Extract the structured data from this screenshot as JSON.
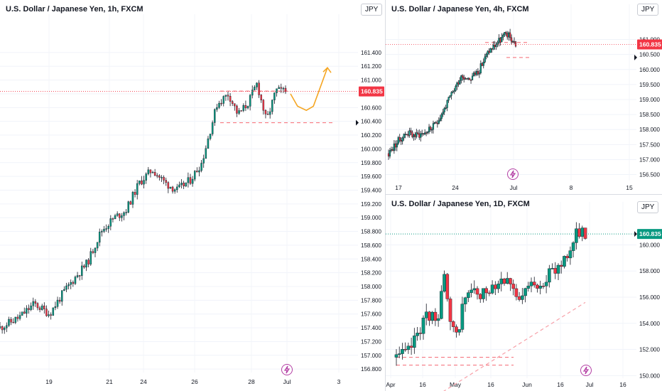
{
  "colors": {
    "up": "#089981",
    "down": "#f23645",
    "last_price": "#f23645",
    "daily_last": "#089981",
    "projection": "#f5a623",
    "bolt": "#b43fa4"
  },
  "chart_data": [
    {
      "type": "candlestick",
      "title": "U.S. Dollar / Japanese Yen, 1h, FXCM",
      "currency": "JPY",
      "last_price": "160.835",
      "ylim": [
        156.75,
        161.75
      ],
      "y_ticks": [
        "161.400",
        "161.200",
        "161.000",
        "160.800",
        "160.600",
        "160.400",
        "160.200",
        "160.000",
        "159.800",
        "159.600",
        "159.400",
        "159.200",
        "159.000",
        "158.800",
        "158.600",
        "158.400",
        "158.200",
        "158.000",
        "157.800",
        "157.600",
        "157.400",
        "157.200",
        "157.000",
        "156.800"
      ],
      "x_ticks": [
        "19",
        "21",
        "24",
        "26",
        "28",
        "Jul",
        "3"
      ],
      "path_days": [
        0.0,
        1.0,
        1.8,
        2.6,
        3.3,
        4.0,
        4.6,
        5.3,
        6.0,
        6.6,
        7.3,
        8.0,
        8.7,
        9.3,
        10.0,
        10.6,
        11.4,
        12.0,
        12.5,
        13.0,
        13.5,
        14.0,
        14.5,
        15.0
      ],
      "path_values": [
        157.4,
        157.55,
        157.75,
        157.6,
        157.9,
        158.15,
        158.35,
        158.8,
        159.0,
        159.1,
        159.5,
        159.7,
        159.5,
        159.4,
        159.55,
        159.8,
        160.65,
        160.8,
        160.5,
        160.65,
        160.95,
        160.4,
        160.85,
        160.835
      ],
      "dashed_levels": [
        160.84,
        160.38
      ],
      "projection_days": [
        15.2,
        15.6,
        16.1,
        16.5,
        16.9,
        17.3
      ],
      "projection_values": [
        160.8,
        160.62,
        160.56,
        160.62,
        160.9,
        161.18
      ]
    },
    {
      "type": "candlestick",
      "title": "U.S. Dollar / Japanese Yen, 4h, FXCM",
      "currency": "JPY",
      "last_price": "160.835",
      "ylim": [
        156.3,
        161.7
      ],
      "y_ticks": [
        "161.000",
        "160.500",
        "160.000",
        "159.500",
        "159.000",
        "158.500",
        "158.000",
        "157.500",
        "157.000",
        "156.500"
      ],
      "x_ticks": [
        "17",
        "24",
        "Jul",
        "8",
        "15"
      ],
      "path_days": [
        0.0,
        1.0,
        2.0,
        3.0,
        4.0,
        5.0,
        6.0,
        7.0,
        8.0,
        9.0,
        10.0,
        11.0,
        12.0,
        13.0,
        14.0
      ],
      "path_values": [
        157.2,
        157.6,
        157.9,
        157.8,
        157.9,
        158.1,
        158.6,
        159.2,
        159.8,
        159.7,
        160.0,
        160.6,
        160.9,
        161.2,
        160.835
      ],
      "dashed_levels": [
        160.9,
        160.4
      ]
    },
    {
      "type": "candlestick",
      "title": "U.S. Dollar / Japanese Yen, 1D, FXCM",
      "currency": "JPY",
      "last_price": "160.835",
      "ylim": [
        149.8,
        162.2
      ],
      "y_ticks": [
        "160.000",
        "158.000",
        "156.000",
        "154.000",
        "152.000",
        "150.000"
      ],
      "x_ticks": [
        "Apr",
        "16",
        "May",
        "16",
        "Jun",
        "16",
        "Jul",
        "16"
      ],
      "path_days": [
        0,
        5,
        9,
        13,
        16,
        20,
        23,
        26,
        29,
        33,
        37,
        41,
        45,
        49,
        52,
        56,
        59,
        62,
        65,
        68,
        72,
        76,
        80,
        84,
        88,
        92
      ],
      "path_values": [
        151.4,
        151.6,
        152.8,
        154.2,
        154.6,
        154.4,
        157.8,
        154.0,
        152.7,
        155.9,
        156.6,
        155.8,
        156.8,
        157.2,
        157.6,
        157.4,
        155.2,
        156.2,
        156.8,
        157.1,
        157.4,
        157.8,
        158.6,
        159.6,
        160.9,
        160.835
      ],
      "dashed_levels": [
        160.835,
        151.4,
        150.8
      ],
      "trendline": {
        "from": [
          20,
          148.5
        ],
        "to": [
          92,
          155.6
        ]
      }
    }
  ]
}
